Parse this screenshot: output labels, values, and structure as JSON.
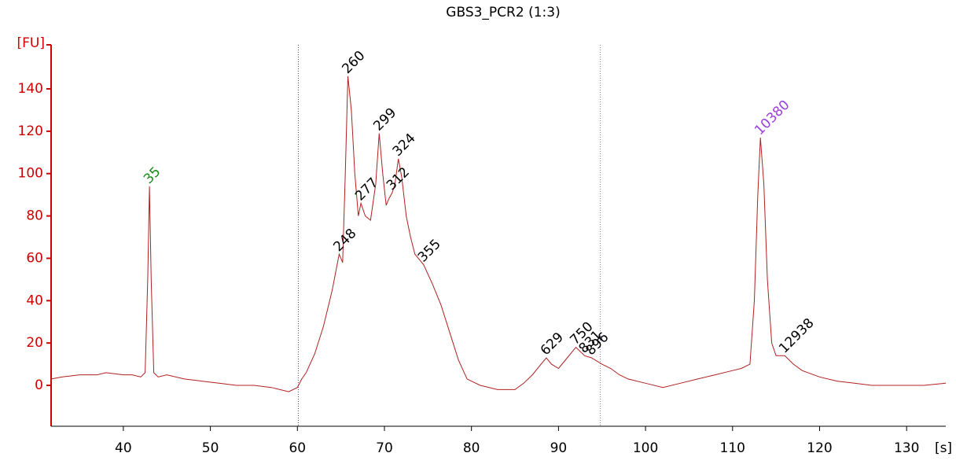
{
  "chart_data": {
    "type": "line",
    "title": "GBS3_PCR2 (1:3)",
    "y_label": "[FU]",
    "x_label": "[s]",
    "color": "#b02020",
    "axis_color": "#d00000",
    "xlim": [
      31.7,
      134.5
    ],
    "ylim": [
      -19.3,
      160.8
    ],
    "xticks": [
      40,
      50,
      60,
      70,
      80,
      90,
      100,
      110,
      120,
      130
    ],
    "yticks": [
      0,
      20,
      40,
      60,
      80,
      100,
      120,
      140
    ],
    "region_lines": [
      60.1,
      94.8
    ],
    "x": [
      31.7,
      33,
      35,
      37,
      38,
      40,
      41,
      42,
      42.5,
      42.8,
      43,
      43.2,
      43.5,
      44,
      45,
      47,
      49,
      51,
      53,
      55,
      57,
      58,
      59,
      60,
      60.5,
      61,
      62,
      63,
      64,
      64.8,
      65.2,
      65.5,
      65.8,
      66.2,
      66.6,
      67,
      67.3,
      67.8,
      68.4,
      69,
      69.4,
      69.8,
      70.2,
      70.5,
      70.9,
      71.2,
      71.6,
      72,
      72.5,
      73,
      73.5,
      74.5,
      75.5,
      76.5,
      77.5,
      78.5,
      79.5,
      81,
      83,
      85,
      86,
      87,
      88,
      88.6,
      89.2,
      90,
      91,
      92,
      93,
      93.8,
      95,
      96,
      97,
      98,
      100,
      102,
      104,
      106,
      108,
      110,
      111,
      112,
      112.5,
      112.9,
      113.2,
      113.6,
      114,
      114.5,
      115,
      116,
      117,
      118,
      120,
      122,
      124,
      126,
      128,
      130,
      132,
      134.5
    ],
    "values": [
      3,
      4,
      5,
      5,
      6,
      5,
      5,
      4,
      6,
      50,
      94,
      50,
      6,
      4,
      5,
      3,
      2,
      1,
      0,
      0,
      -1,
      -2,
      -3,
      -1,
      3,
      6,
      15,
      28,
      45,
      62,
      58,
      100,
      146,
      130,
      100,
      80,
      86,
      80,
      78,
      95,
      119,
      100,
      85,
      88,
      91,
      95,
      107,
      98,
      80,
      70,
      62,
      57,
      48,
      38,
      25,
      12,
      3,
      0,
      -2,
      -2,
      1,
      5,
      10,
      13,
      10,
      8,
      13,
      18,
      14,
      13,
      10,
      8,
      5,
      3,
      1,
      -1,
      1,
      3,
      5,
      7,
      8,
      10,
      40,
      90,
      117,
      95,
      50,
      20,
      14,
      14,
      10,
      7,
      4,
      2,
      1,
      0,
      0,
      0,
      0,
      1
    ],
    "peaks": [
      {
        "label": "35",
        "x": 43,
        "y": 94,
        "color": "#1a8a1a"
      },
      {
        "label": "248",
        "x": 64.8,
        "y": 62,
        "color": "#000000"
      },
      {
        "label": "260",
        "x": 65.8,
        "y": 146,
        "color": "#000000"
      },
      {
        "label": "277",
        "x": 67.3,
        "y": 86,
        "color": "#000000"
      },
      {
        "label": "299",
        "x": 69.4,
        "y": 119,
        "color": "#000000"
      },
      {
        "label": "312",
        "x": 70.9,
        "y": 91,
        "color": "#000000"
      },
      {
        "label": "324",
        "x": 71.6,
        "y": 107,
        "color": "#000000"
      },
      {
        "label": "355",
        "x": 74.5,
        "y": 57,
        "color": "#000000"
      },
      {
        "label": "629",
        "x": 88.6,
        "y": 13,
        "color": "#000000"
      },
      {
        "label": "750",
        "x": 92,
        "y": 18,
        "color": "#000000"
      },
      {
        "label": "831",
        "x": 93,
        "y": 14,
        "color": "#000000"
      },
      {
        "label": "896",
        "x": 93.8,
        "y": 13,
        "color": "#000000"
      },
      {
        "label": "10380",
        "x": 113.2,
        "y": 117,
        "color": "#9a40e0"
      },
      {
        "label": "12938",
        "x": 116,
        "y": 14,
        "color": "#000000"
      }
    ]
  }
}
